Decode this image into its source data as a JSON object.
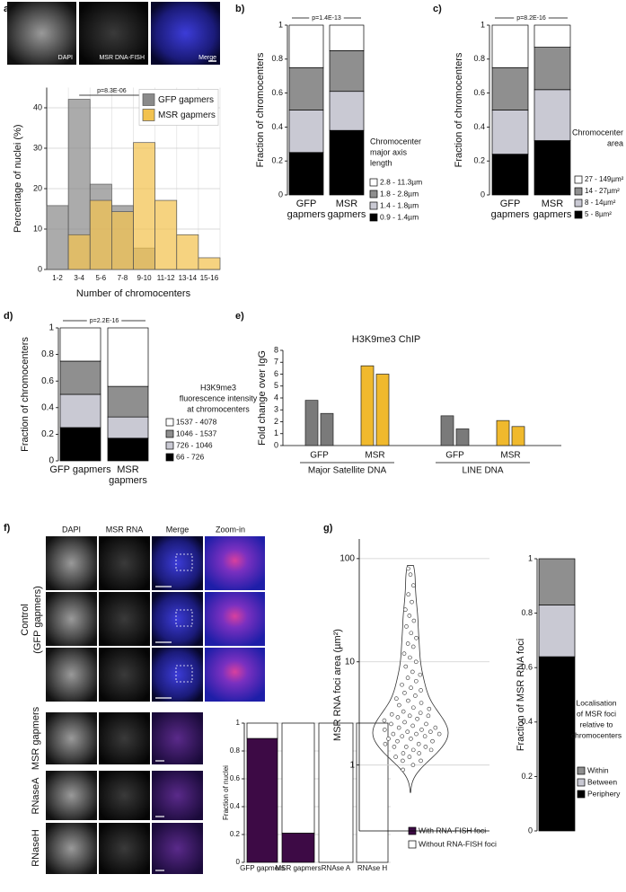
{
  "panel_labels": [
    "a)",
    "b)",
    "c)",
    "d)",
    "e)",
    "f)",
    "g)"
  ],
  "images_a": {
    "columns": [
      "DAPI",
      "MSR DNA-FISH",
      "Merge"
    ]
  },
  "images_f": {
    "columns": [
      "DAPI",
      "MSR RNA",
      "Merge",
      "Zoom-in"
    ],
    "rows": [
      [
        "Control",
        "(GFP gapmers)"
      ],
      [
        "MSR gapmers"
      ],
      [
        "RNaseA"
      ],
      [
        "RNaseH"
      ]
    ]
  },
  "chart_data": [
    {
      "type": "bar",
      "overlap": true,
      "grid": true,
      "legend": "upper right",
      "ylabel": "Percentage of nuclei (%)",
      "xlabel": "Number of chromocenters",
      "annotation": "p=8.3E-06",
      "categories": [
        "1-2",
        "3-4",
        "5-6",
        "7-8",
        "9-10",
        "11-12",
        "13-14",
        "15-16"
      ],
      "ylim": [
        0,
        45
      ],
      "yticks": [
        0,
        10,
        20,
        30,
        40
      ],
      "series": [
        {
          "name": "GFP gapmers",
          "color": "#8a8a8a",
          "values": [
            15.8,
            42.1,
            21.1,
            15.8,
            5.3,
            0,
            0,
            0
          ]
        },
        {
          "name": "MSR gapmers",
          "color": "#f2c24f",
          "values": [
            0,
            8.6,
            17.1,
            14.3,
            31.4,
            17.1,
            8.6,
            2.9
          ]
        }
      ]
    },
    {
      "type": "bar",
      "stacked": true,
      "ylabel": "Fraction of chromocenters",
      "annotation": "p=1.4E-13",
      "legend_title": [
        "Chromocenter",
        "major axis",
        "length"
      ],
      "categories": [
        "GFP gapmers",
        "MSR gapmers"
      ],
      "ylim": [
        0,
        1
      ],
      "yticks": [
        0,
        0.2,
        0.4,
        0.6,
        0.8,
        1
      ],
      "series": [
        {
          "name": "0.9 - 1.4µm",
          "color": "#000000",
          "values": [
            0.25,
            0.38
          ]
        },
        {
          "name": "1.4 - 1.8µm",
          "color": "#c9c9d3",
          "values": [
            0.25,
            0.23
          ]
        },
        {
          "name": "1.8 - 2.8µm",
          "color": "#8f8f8f",
          "values": [
            0.25,
            0.24
          ]
        },
        {
          "name": "2.8 - 11.3µm",
          "color": "#ffffff",
          "values": [
            0.25,
            0.15
          ]
        }
      ]
    },
    {
      "type": "bar",
      "stacked": true,
      "ylabel": "Fraction of chromocenters",
      "annotation": "p=8.2E-16",
      "legend_title": [
        "Chromocenter",
        "area"
      ],
      "categories": [
        "GFP gapmers",
        "MSR gapmers"
      ],
      "ylim": [
        0,
        1
      ],
      "yticks": [
        0,
        0.2,
        0.4,
        0.6,
        0.8,
        1
      ],
      "series": [
        {
          "name": "5 - 8µm²",
          "color": "#000000",
          "values": [
            0.24,
            0.32
          ]
        },
        {
          "name": "8 - 14µm²",
          "color": "#c9c9d3",
          "values": [
            0.26,
            0.3
          ]
        },
        {
          "name": "14 - 27µm²",
          "color": "#8f8f8f",
          "values": [
            0.25,
            0.25
          ]
        },
        {
          "name": "27 - 149µm²",
          "color": "#ffffff",
          "values": [
            0.25,
            0.13
          ]
        }
      ]
    },
    {
      "type": "bar",
      "stacked": true,
      "ylabel": "Fraction of chromocenters",
      "annotation": "p=2.2E-16",
      "legend_title": [
        "H3K9me3",
        "fluorescence intensity",
        "at chromocenters"
      ],
      "categories": [
        "GFP gapmers",
        "MSR gapmers"
      ],
      "ylim": [
        0,
        1
      ],
      "yticks": [
        0,
        0.2,
        0.4,
        0.6,
        0.8,
        1
      ],
      "series": [
        {
          "name": "66 - 726",
          "color": "#000000",
          "values": [
            0.25,
            0.17
          ]
        },
        {
          "name": "726 - 1046",
          "color": "#c9c9d3",
          "values": [
            0.25,
            0.16
          ]
        },
        {
          "name": "1046 - 1537",
          "color": "#8f8f8f",
          "values": [
            0.25,
            0.23
          ]
        },
        {
          "name": "1537 - 4078",
          "color": "#ffffff",
          "values": [
            0.25,
            0.44
          ]
        }
      ]
    },
    {
      "type": "bar",
      "title": "H3K9me3 ChIP",
      "ylabel": "Fold change over IgG",
      "groups": [
        "Major Satellite DNA",
        "LINE DNA"
      ],
      "ylim": [
        0,
        8
      ],
      "yticks": [
        0,
        1,
        2,
        3,
        4,
        5,
        6,
        7,
        8
      ],
      "series": [
        {
          "name": "GFP",
          "color": "#7a7a7a",
          "values": [
            [
              3.8,
              2.7
            ],
            [
              2.5,
              1.4
            ]
          ]
        },
        {
          "name": "MSR",
          "color": "#f0b92d",
          "values": [
            [
              6.7,
              6.0
            ],
            [
              2.1,
              1.6
            ]
          ]
        }
      ]
    },
    {
      "type": "bar",
      "stacked": true,
      "grid": true,
      "ylabel": "Fraction of nuclei",
      "categories": [
        "GFP gapmers",
        "MSR gapmers",
        "RNAse A",
        "RNAse H"
      ],
      "ylim": [
        0,
        1
      ],
      "yticks": [
        0,
        0.2,
        0.4,
        0.6,
        0.8,
        1
      ],
      "series": [
        {
          "name": "With RNA-FISH foci",
          "color": "#3d0a45",
          "values": [
            0.89,
            0.21,
            0,
            0
          ]
        },
        {
          "name": "Without RNA-FISH foci",
          "color": "#ffffff",
          "values": [
            0.11,
            0.79,
            1,
            1
          ]
        }
      ]
    },
    {
      "type": "violin",
      "log_scale": true,
      "grid": true,
      "ylabel": "MSR RNA foci area (µm²)",
      "ylim": [
        0.23,
        155
      ],
      "yticks": [
        1,
        10,
        100
      ],
      "values": [
        0.9,
        1.0,
        1.1,
        1.1,
        1.2,
        1.2,
        1.3,
        1.3,
        1.4,
        1.4,
        1.5,
        1.5,
        1.5,
        1.6,
        1.6,
        1.7,
        1.7,
        1.8,
        1.8,
        1.9,
        1.9,
        2.0,
        2.0,
        2.0,
        2.1,
        2.1,
        2.2,
        2.2,
        2.3,
        2.3,
        2.4,
        2.5,
        2.5,
        2.6,
        2.7,
        2.8,
        2.9,
        3.0,
        3.0,
        3.1,
        3.2,
        3.3,
        3.5,
        3.6,
        3.8,
        4.0,
        4.2,
        4.4,
        4.7,
        5.0,
        5.3,
        5.6,
        6.0,
        6.5,
        7.0,
        7.5,
        8.0,
        9.0,
        10,
        11,
        12,
        14,
        15,
        17,
        19,
        22,
        25,
        28,
        32,
        38,
        45,
        55,
        70,
        80
      ]
    },
    {
      "type": "bar",
      "stacked": true,
      "ylabel": "Fraction of MSR RNA foci",
      "legend_title": [
        "Localisation",
        "of MSR foci",
        "relative to",
        "chromocenters"
      ],
      "categories": [
        null
      ],
      "ylim": [
        0,
        1
      ],
      "yticks": [
        0,
        0.2,
        0.4,
        0.6,
        0.8,
        1
      ],
      "series": [
        {
          "name": "Periphery",
          "color": "#000000",
          "values": [
            0.64
          ]
        },
        {
          "name": "Between",
          "color": "#c9c9d3",
          "values": [
            0.19
          ]
        },
        {
          "name": "Within",
          "color": "#8f8f8f",
          "values": [
            0.17
          ]
        }
      ]
    }
  ]
}
